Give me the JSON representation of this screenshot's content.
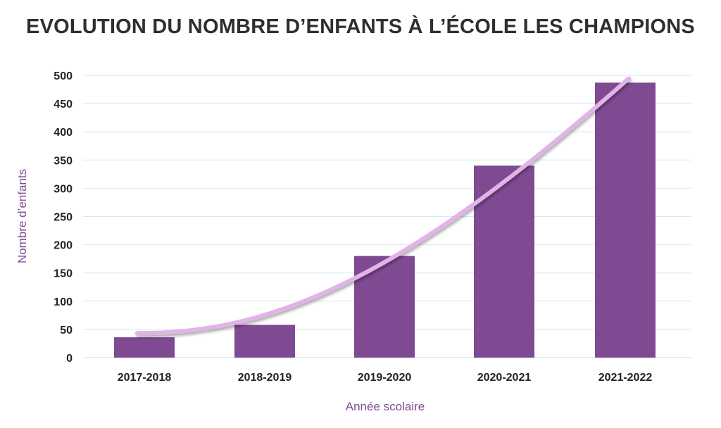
{
  "chart_data": {
    "type": "bar",
    "title": "EVOLUTION DU NOMBRE D’ENFANTS À L’ÉCOLE LES CHAMPIONS",
    "xlabel": "Année scolaire",
    "ylabel": "Nombre d’enfants",
    "categories": [
      "2017-2018",
      "2018-2019",
      "2019-2020",
      "2020-2021",
      "2021-2022"
    ],
    "values": [
      36,
      58,
      180,
      340,
      487
    ],
    "ylim": [
      0,
      500
    ],
    "yticks": [
      0,
      50,
      100,
      150,
      200,
      250,
      300,
      350,
      400,
      450,
      500
    ],
    "grid": true,
    "legend": "none",
    "trendline": true,
    "colors": {
      "bar": "#7f4a91",
      "trend": "#e2b3e8",
      "grid": "#d6e8f0",
      "axis_title": "#7d4a93"
    }
  }
}
